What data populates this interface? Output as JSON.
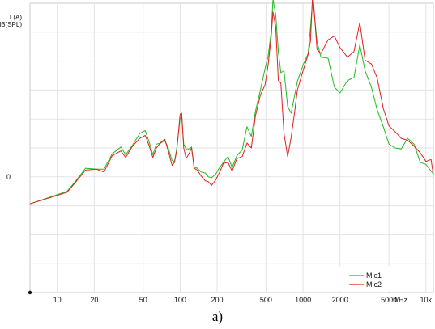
{
  "chart_data": {
    "type": "line",
    "ylabel_lines": [
      "L(A)",
      "dB(SPL)"
    ],
    "y_tick_labels": [
      {
        "value": 0,
        "label": "0"
      }
    ],
    "ylim": [
      -12,
      18
    ],
    "xscale": "log",
    "xlim": [
      6,
      11500
    ],
    "x_ticks": [
      {
        "value": 10,
        "label": "10"
      },
      {
        "value": 20,
        "label": "20"
      },
      {
        "value": 50,
        "label": "50"
      },
      {
        "value": 100,
        "label": "100"
      },
      {
        "value": 200,
        "label": "200"
      },
      {
        "value": 500,
        "label": "500"
      },
      {
        "value": 1000,
        "label": "1000"
      },
      {
        "value": 2000,
        "label": "2000"
      },
      {
        "value": 5000,
        "label": "5000"
      },
      {
        "value": 10000,
        "label": "10k"
      }
    ],
    "x_unit_label": "f/Hz",
    "grid": true,
    "legend_position": "bottom-right",
    "series": [
      {
        "name": "Mic1",
        "color": "#22bb22",
        "points": [
          [
            6,
            -2.8
          ],
          [
            12,
            -1.5
          ],
          [
            14,
            -0.5
          ],
          [
            17,
            0.9
          ],
          [
            21,
            0.8
          ],
          [
            24,
            0.8
          ],
          [
            28,
            2.4
          ],
          [
            33,
            3.1
          ],
          [
            36,
            2.3
          ],
          [
            41,
            3.3
          ],
          [
            47,
            4.5
          ],
          [
            52,
            4.8
          ],
          [
            56,
            3.6
          ],
          [
            60,
            2.3
          ],
          [
            64,
            3.4
          ],
          [
            70,
            3.5
          ],
          [
            75,
            3.8
          ],
          [
            80,
            3.0
          ],
          [
            86,
            1.7
          ],
          [
            90,
            1.6
          ],
          [
            94,
            3.0
          ],
          [
            100,
            6.1
          ],
          [
            103,
            6.2
          ],
          [
            107,
            3.4
          ],
          [
            112,
            2.9
          ],
          [
            118,
            2.9
          ],
          [
            124,
            3.1
          ],
          [
            130,
            1.0
          ],
          [
            138,
            0.9
          ],
          [
            148,
            0.5
          ],
          [
            160,
            0.4
          ],
          [
            170,
            0.0
          ],
          [
            180,
            -0.1
          ],
          [
            195,
            0.3
          ],
          [
            210,
            1.0
          ],
          [
            225,
            1.5
          ],
          [
            245,
            2.1
          ],
          [
            265,
            1.0
          ],
          [
            290,
            2.2
          ],
          [
            320,
            2.8
          ],
          [
            350,
            5.2
          ],
          [
            380,
            4.2
          ],
          [
            410,
            6.8
          ],
          [
            450,
            9.0
          ],
          [
            490,
            11.2
          ],
          [
            520,
            12.5
          ],
          [
            550,
            15.0
          ],
          [
            570,
            18.4
          ],
          [
            600,
            16.8
          ],
          [
            630,
            13.0
          ],
          [
            660,
            10.8
          ],
          [
            700,
            11.0
          ],
          [
            750,
            7.3
          ],
          [
            800,
            6.6
          ],
          [
            850,
            8.3
          ],
          [
            900,
            9.9
          ],
          [
            1000,
            11.6
          ],
          [
            1100,
            12.8
          ],
          [
            1150,
            15.5
          ],
          [
            1200,
            18.5
          ],
          [
            1300,
            14.0
          ],
          [
            1400,
            12.4
          ],
          [
            1600,
            12.3
          ],
          [
            1800,
            9.3
          ],
          [
            2000,
            8.7
          ],
          [
            2300,
            10.0
          ],
          [
            2600,
            10.3
          ],
          [
            2900,
            13.7
          ],
          [
            3200,
            11.0
          ],
          [
            3600,
            9.3
          ],
          [
            4000,
            7.0
          ],
          [
            4500,
            5.2
          ],
          [
            5000,
            3.4
          ],
          [
            5600,
            3.0
          ],
          [
            6300,
            2.9
          ],
          [
            7100,
            4.0
          ],
          [
            8000,
            3.4
          ],
          [
            9000,
            1.5
          ],
          [
            10000,
            1.3
          ],
          [
            11000,
            0.6
          ],
          [
            11500,
            0.3
          ]
        ]
      },
      {
        "name": "Mic2",
        "color": "#e02020",
        "points": [
          [
            6,
            -2.8
          ],
          [
            12,
            -1.6
          ],
          [
            14,
            -0.6
          ],
          [
            17,
            0.7
          ],
          [
            21,
            0.8
          ],
          [
            24,
            0.5
          ],
          [
            28,
            2.2
          ],
          [
            33,
            2.7
          ],
          [
            36,
            2.0
          ],
          [
            41,
            3.2
          ],
          [
            47,
            4.0
          ],
          [
            52,
            4.3
          ],
          [
            56,
            3.2
          ],
          [
            60,
            2.0
          ],
          [
            64,
            3.0
          ],
          [
            70,
            3.6
          ],
          [
            75,
            3.9
          ],
          [
            80,
            2.7
          ],
          [
            86,
            1.2
          ],
          [
            90,
            1.5
          ],
          [
            94,
            2.8
          ],
          [
            100,
            6.5
          ],
          [
            103,
            6.6
          ],
          [
            107,
            3.0
          ],
          [
            112,
            1.9
          ],
          [
            118,
            2.4
          ],
          [
            124,
            3.0
          ],
          [
            130,
            0.9
          ],
          [
            138,
            0.7
          ],
          [
            148,
            0.1
          ],
          [
            160,
            -0.4
          ],
          [
            170,
            -0.5
          ],
          [
            180,
            -0.9
          ],
          [
            195,
            -0.3
          ],
          [
            210,
            0.5
          ],
          [
            225,
            1.4
          ],
          [
            245,
            1.5
          ],
          [
            265,
            0.6
          ],
          [
            290,
            1.9
          ],
          [
            320,
            2.1
          ],
          [
            350,
            3.5
          ],
          [
            380,
            3.0
          ],
          [
            410,
            6.3
          ],
          [
            450,
            8.5
          ],
          [
            490,
            9.5
          ],
          [
            520,
            11.6
          ],
          [
            550,
            14.5
          ],
          [
            570,
            17.1
          ],
          [
            600,
            15.5
          ],
          [
            630,
            10.0
          ],
          [
            660,
            9.7
          ],
          [
            700,
            4.5
          ],
          [
            750,
            2.1
          ],
          [
            800,
            4.1
          ],
          [
            850,
            6.5
          ],
          [
            900,
            9.0
          ],
          [
            1000,
            11.0
          ],
          [
            1100,
            12.7
          ],
          [
            1150,
            14.1
          ],
          [
            1200,
            19.2
          ],
          [
            1300,
            13.2
          ],
          [
            1400,
            12.8
          ],
          [
            1600,
            14.2
          ],
          [
            1800,
            14.6
          ],
          [
            2000,
            13.4
          ],
          [
            2300,
            12.4
          ],
          [
            2600,
            13.0
          ],
          [
            2900,
            16.0
          ],
          [
            3200,
            12.1
          ],
          [
            3600,
            11.7
          ],
          [
            4000,
            10.3
          ],
          [
            4500,
            7.1
          ],
          [
            5000,
            5.3
          ],
          [
            5600,
            4.7
          ],
          [
            6300,
            4.0
          ],
          [
            7100,
            3.8
          ],
          [
            8000,
            3.2
          ],
          [
            9000,
            2.5
          ],
          [
            10000,
            1.6
          ],
          [
            11000,
            1.8
          ],
          [
            11500,
            0.2
          ]
        ]
      }
    ]
  },
  "caption": "a)"
}
